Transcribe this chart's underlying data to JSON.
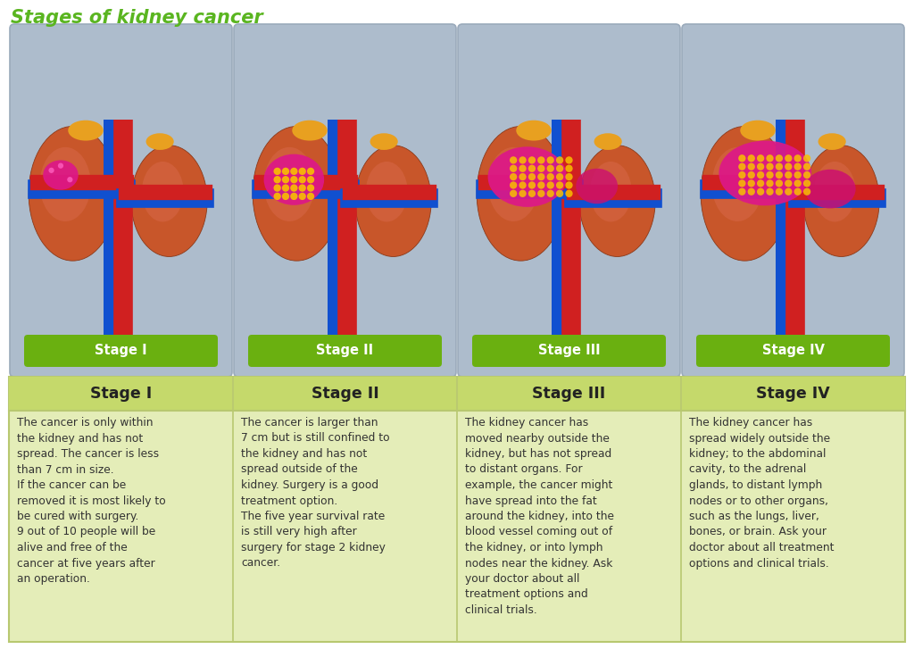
{
  "title": "Stages of kidney cancer",
  "title_color": "#5ab520",
  "title_fontsize": 15,
  "background_color": "#ffffff",
  "stages": [
    "Stage I",
    "Stage II",
    "Stage III",
    "Stage IV"
  ],
  "image_box_color": "#adbccc",
  "image_box_border": "#9aaabb",
  "label_box_color": "#6ab010",
  "label_text_color": "#ffffff",
  "header_bg_color": "#c5d96b",
  "header_text_color": "#222222",
  "cell_bg_color": "#e4edb8",
  "cell_border_color": "#b8c870",
  "cell_text_color": "#333333",
  "outer_border_color": "#b8c870",
  "descriptions": [
    "The cancer is only within\nthe kidney and has not\nspread. The cancer is less\nthan 7 cm in size.\nIf the cancer can be\nremoved it is most likely to\nbe cured with surgery.\n9 out of 10 people will be\nalive and free of the\ncancer at five years after\nan operation.",
    "The cancer is larger than\n7 cm but is still confined to\nthe kidney and has not\nspread outside of the\nkidney. Surgery is a good\ntreatment option.\nThe five year survival rate\nis still very high after\nsurgery for stage 2 kidney\ncancer.",
    "The kidney cancer has\nmoved nearby outside the\nkidney, but has not spread\nto distant organs. For\nexample, the cancer might\nhave spread into the fat\naround the kidney, into the\nblood vessel coming out of\nthe kidney, or into lymph\nnodes near the kidney. Ask\nyour doctor about all\ntreatment options and\nclinical trials.",
    "The kidney cancer has\nspread widely outside the\nkidney; to the abdominal\ncavity, to the adrenal\nglands, to distant lymph\nnodes or to other organs,\nsuch as the lungs, liver,\nbones, or brain. Ask your\ndoctor about all treatment\noptions and clinical trials."
  ]
}
